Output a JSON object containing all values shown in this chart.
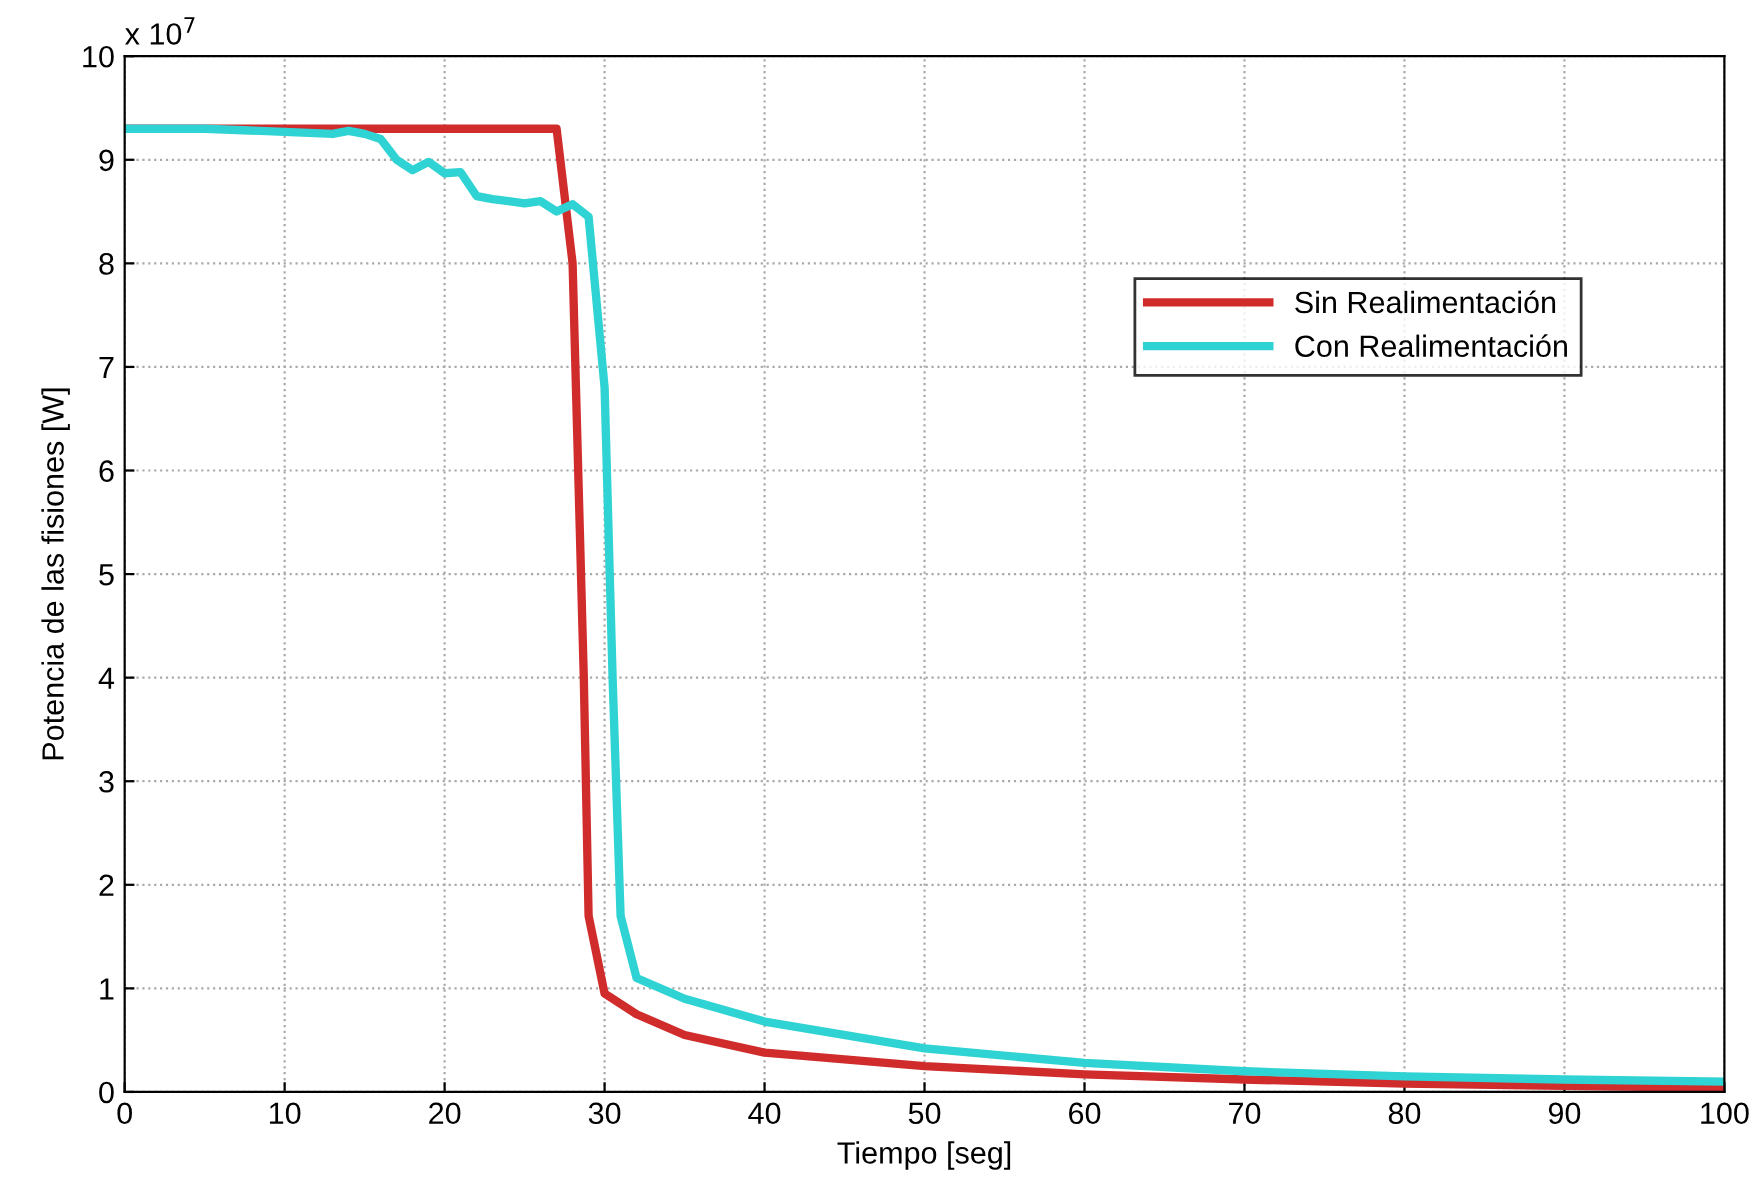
{
  "chart_data": {
    "type": "line",
    "xlabel": "Tiempo [seg]",
    "ylabel": "Potencia de las fisiones [W]",
    "annotations": [
      "x 10$^{7}$"
    ],
    "xlim": [
      0,
      100
    ],
    "xticks": [
      0,
      10,
      20,
      30,
      40,
      50,
      60,
      70,
      80,
      90,
      100
    ],
    "ylim": [
      0,
      10
    ],
    "yticks": [
      0,
      1,
      2,
      3,
      4,
      5,
      6,
      7,
      8,
      9,
      10
    ],
    "grid": true,
    "legend": "right",
    "line_style": "solid",
    "marker": "none",
    "series": [
      {
        "name": "Sin Realimentación",
        "color": "#d12c2c",
        "x": [
          0,
          10,
          20,
          27,
          28,
          28.7,
          29,
          30,
          32,
          35,
          40,
          50,
          60,
          70,
          80,
          90,
          100
        ],
        "values": [
          9.3,
          9.3,
          9.3,
          9.3,
          8.0,
          4.0,
          1.7,
          0.95,
          0.75,
          0.55,
          0.38,
          0.25,
          0.17,
          0.12,
          0.08,
          0.06,
          0.04
        ]
      },
      {
        "name": "Con Realimentación",
        "color": "#2fd3d3",
        "x": [
          0,
          5,
          10,
          13,
          14,
          15,
          16,
          17,
          18,
          19,
          20,
          21,
          22,
          23,
          24,
          25,
          26,
          27,
          28,
          29,
          30,
          30.5,
          31,
          32,
          35,
          40,
          50,
          60,
          70,
          80,
          90,
          100
        ],
        "values": [
          9.3,
          9.3,
          9.27,
          9.25,
          9.28,
          9.25,
          9.2,
          9.0,
          8.9,
          8.98,
          8.87,
          8.88,
          8.65,
          8.62,
          8.6,
          8.58,
          8.6,
          8.5,
          8.57,
          8.45,
          6.8,
          4.0,
          1.7,
          1.1,
          0.9,
          0.68,
          0.42,
          0.28,
          0.2,
          0.15,
          0.12,
          0.1
        ]
      }
    ]
  }
}
